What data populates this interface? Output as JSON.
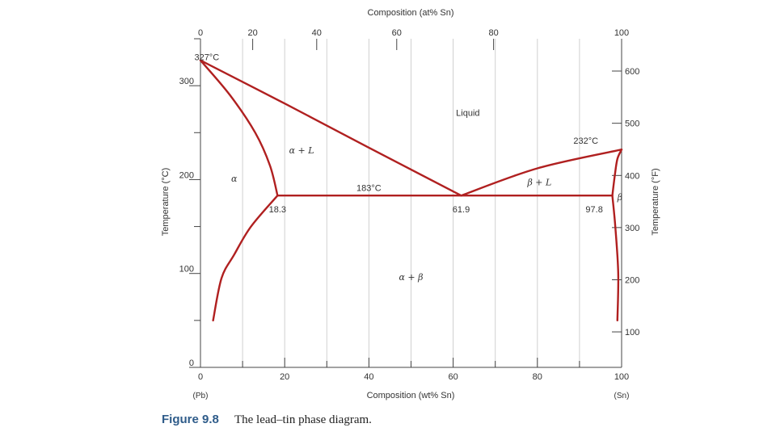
{
  "chart_data": {
    "type": "phase-diagram",
    "title": "",
    "xlabel_bottom": "Composition (wt% Sn)",
    "xlabel_top": "Composition (at% Sn)",
    "ylabel_left": "Temperature (°C)",
    "ylabel_right": "Temperature (°F)",
    "xlim": [
      0,
      100
    ],
    "ylim": [
      0,
      350
    ],
    "grid": true,
    "x_ticks_bottom": [
      "0",
      "20",
      "40",
      "60",
      "80",
      "100"
    ],
    "x_ticks_top": [
      {
        "label": "0",
        "wt": 0
      },
      {
        "label": "20",
        "wt": 12.4
      },
      {
        "label": "40",
        "wt": 27.6
      },
      {
        "label": "60",
        "wt": 46.6
      },
      {
        "label": "80",
        "wt": 69.6
      },
      {
        "label": "100",
        "wt": 100
      }
    ],
    "y_ticks_left": [
      "0",
      "100",
      "200",
      "300"
    ],
    "y_ticks_right": [
      {
        "label": "100",
        "degC": 37.8
      },
      {
        "label": "200",
        "degC": 93.3
      },
      {
        "label": "300",
        "degC": 148.9
      },
      {
        "label": "400",
        "degC": 204.4
      },
      {
        "label": "500",
        "degC": 260.0
      },
      {
        "label": "600",
        "degC": 315.6
      }
    ],
    "end_labels": {
      "left": "(Pb)",
      "right": "(Sn)"
    },
    "curves": [
      {
        "name": "liquidus-alpha",
        "points": [
          [
            0,
            327
          ],
          [
            20,
            281
          ],
          [
            40,
            234
          ],
          [
            61.9,
            183
          ]
        ]
      },
      {
        "name": "liquidus-beta",
        "points": [
          [
            61.9,
            183
          ],
          [
            80,
            212
          ],
          [
            100,
            232
          ]
        ]
      },
      {
        "name": "solidus-alpha",
        "points": [
          [
            0,
            327
          ],
          [
            7,
            290
          ],
          [
            13,
            250
          ],
          [
            16.5,
            215
          ],
          [
            18.3,
            183
          ]
        ]
      },
      {
        "name": "solvus-alpha",
        "points": [
          [
            18.3,
            183
          ],
          [
            12,
            150
          ],
          [
            8,
            120
          ],
          [
            5,
            95
          ],
          [
            3,
            50
          ]
        ]
      },
      {
        "name": "eutectic-isotherm",
        "points": [
          [
            18.3,
            183
          ],
          [
            97.8,
            183
          ]
        ]
      },
      {
        "name": "solidus-beta",
        "points": [
          [
            97.8,
            183
          ],
          [
            98.4,
            205
          ],
          [
            99,
            222
          ],
          [
            100,
            232
          ]
        ]
      },
      {
        "name": "solvus-beta",
        "points": [
          [
            97.8,
            183
          ],
          [
            98.5,
            150
          ],
          [
            99.2,
            100
          ],
          [
            99,
            50
          ]
        ]
      }
    ],
    "annotations": [
      {
        "text": "327°C",
        "x": 1.5,
        "y": 327
      },
      {
        "text": "Liquid",
        "x": 63.5,
        "y": 268
      },
      {
        "text": "232°C",
        "x": 91.5,
        "y": 238
      },
      {
        "text": "α + L",
        "x": 24,
        "y": 228
      },
      {
        "text": "α",
        "x": 8,
        "y": 198
      },
      {
        "text": "183°C",
        "x": 40,
        "y": 188
      },
      {
        "text": "β + L",
        "x": 80.5,
        "y": 194
      },
      {
        "text": "β",
        "x": 99.6,
        "y": 178
      },
      {
        "text": "18.3",
        "x": 18.3,
        "y": 165
      },
      {
        "text": "61.9",
        "x": 61.9,
        "y": 165
      },
      {
        "text": "97.8",
        "x": 93.5,
        "y": 165
      },
      {
        "text": "α + β",
        "x": 50,
        "y": 93
      }
    ],
    "colors": {
      "curve": "#b02020",
      "axis": "#444444",
      "grid": "#d0d0d0",
      "text": "#333333"
    }
  },
  "caption": {
    "figure": "Figure 9.8",
    "text": "The lead–tin phase diagram."
  }
}
